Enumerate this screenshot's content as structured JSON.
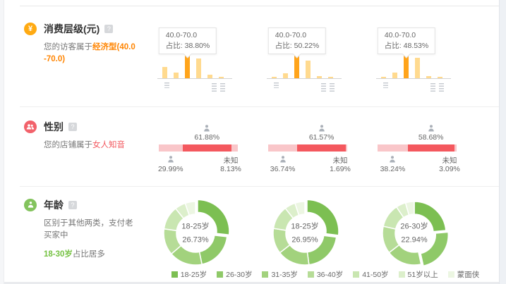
{
  "ui": {
    "help_badge": "?"
  },
  "sections": {
    "consumption": {
      "icon_glyph": "¥",
      "title": "消费层级(元)",
      "desc_prefix": "您的访客属于",
      "desc_highlight": "经济型(40.0-70.0)"
    },
    "gender": {
      "title": "性别",
      "desc_prefix": "您的店铺属于",
      "desc_highlight": "女人知音"
    },
    "age": {
      "title": "年龄",
      "desc_line1": "区别于其他两类，支付老买家中",
      "desc_highlight": "18-30岁",
      "desc_suffix": "占比居多"
    }
  },
  "chart_data": [
    {
      "group": "consumption",
      "type": "bar",
      "bar_color": "#ffda8f",
      "highlight_color": "#ffa41b",
      "tooltip_label": "占比:",
      "charts": [
        {
          "tooltip_range": "40.0-70.0",
          "tooltip_value": "38.80%",
          "highlight_index": 2,
          "values": [
            18,
            9.5,
            38.8,
            31.5,
            5.5,
            2
          ]
        },
        {
          "tooltip_range": "40.0-70.0",
          "tooltip_value": "50.22%",
          "highlight_index": 2,
          "values": [
            2.5,
            10,
            50.22,
            36.5,
            4,
            2
          ]
        },
        {
          "tooltip_range": "40.0-70.0",
          "tooltip_value": "48.53%",
          "highlight_index": 2,
          "values": [
            2.5,
            11,
            48.53,
            42,
            5,
            2.5
          ]
        }
      ]
    },
    {
      "group": "gender",
      "type": "stacked-bar",
      "female_color": "#f4585e",
      "male_color": "#f9c6c9",
      "unknown_label": "未知",
      "charts": [
        {
          "male": "29.99%",
          "female": "61.88%",
          "unknown": "8.13%"
        },
        {
          "male": "36.74%",
          "female": "61.57%",
          "unknown": "1.69%"
        },
        {
          "male": "38.24%",
          "female": "58.68%",
          "unknown": "3.09%"
        }
      ]
    },
    {
      "group": "age",
      "type": "donut",
      "legend": [
        "18-25岁",
        "26-30岁",
        "31-35岁",
        "36-40岁",
        "41-50岁",
        "51岁以上",
        "蒙面侠"
      ],
      "colors": [
        "#7cbf52",
        "#8fc968",
        "#a2d27d",
        "#b6dc97",
        "#c9e6b1",
        "#dcefcb",
        "#ecf6e2"
      ],
      "charts": [
        {
          "center_label": "18-25岁",
          "center_value": "26.73%",
          "highlight_index": 0,
          "values": [
            26.73,
            20,
            17,
            13.5,
            12,
            5.5,
            5.27
          ]
        },
        {
          "center_label": "18-25岁",
          "center_value": "26.95%",
          "highlight_index": 0,
          "values": [
            26.95,
            21,
            16.5,
            13,
            12,
            5.5,
            5.05
          ]
        },
        {
          "center_label": "26-30岁",
          "center_value": "22.94%",
          "highlight_index": 1,
          "values": [
            23.6,
            22.94,
            18,
            14,
            12,
            5,
            4.46
          ]
        }
      ]
    }
  ]
}
